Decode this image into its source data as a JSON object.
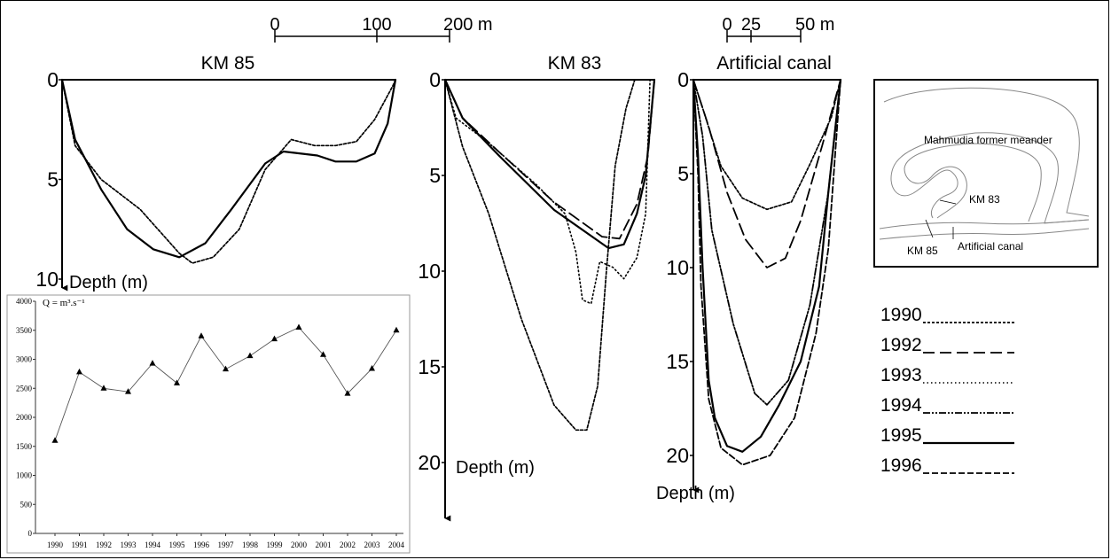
{
  "colors": {
    "ink": "#000000",
    "paper": "#ffffff",
    "river_outline": "#888888"
  },
  "scale_bars": [
    {
      "ticks": [
        "0",
        "100",
        "200 m"
      ]
    },
    {
      "ticks": [
        "0",
        "25",
        "50 m"
      ]
    }
  ],
  "legend": [
    {
      "year": "1990",
      "style": "dotted"
    },
    {
      "year": "1992",
      "style": "long-dash"
    },
    {
      "year": "1993",
      "style": "fine-dotted"
    },
    {
      "year": "1994",
      "style": "dash-dot-dot"
    },
    {
      "year": "1995",
      "style": "solid"
    },
    {
      "year": "1996",
      "style": "dashed"
    }
  ],
  "inset_map": {
    "labels": {
      "meander": "Mahmudia former meander",
      "km83": "KM 83",
      "km85": "KM 85",
      "canal": "Artificial canal"
    }
  },
  "chart_data": [
    {
      "type": "line",
      "title": "KM 85",
      "ylabel": "Depth (m)",
      "yticks": [
        "0",
        "5",
        "10"
      ],
      "ylim": [
        0,
        10
      ],
      "x_unit": "m",
      "xlim": [
        0,
        200
      ],
      "series": [
        {
          "year": "1995",
          "style": "solid",
          "points": [
            [
              0,
              0
            ],
            [
              5,
              3
            ],
            [
              15,
              5.5
            ],
            [
              25,
              7.5
            ],
            [
              35,
              8.5
            ],
            [
              45,
              8.9
            ],
            [
              55,
              8.2
            ],
            [
              65,
              6.5
            ],
            [
              78,
              4.2
            ],
            [
              85,
              3.6
            ],
            [
              98,
              3.8
            ],
            [
              105,
              4.1
            ],
            [
              113,
              4.1
            ],
            [
              120,
              3.7
            ],
            [
              125,
              2.2
            ],
            [
              128,
              0
            ]
          ]
        },
        {
          "year": "1990",
          "style": "dotted",
          "points": [
            [
              0,
              0
            ],
            [
              5,
              3.3
            ],
            [
              15,
              5
            ],
            [
              30,
              6.5
            ],
            [
              45,
              8.7
            ],
            [
              50,
              9.2
            ],
            [
              58,
              8.9
            ],
            [
              68,
              7.5
            ],
            [
              78,
              4.5
            ],
            [
              88,
              3
            ],
            [
              97,
              3.3
            ],
            [
              105,
              3.3
            ],
            [
              113,
              3.1
            ],
            [
              120,
              2
            ],
            [
              127,
              0.3
            ],
            [
              128,
              0
            ]
          ]
        }
      ]
    },
    {
      "type": "line",
      "title": "KM 83",
      "ylabel": "Depth (m)",
      "yticks": [
        "0",
        "5",
        "10",
        "15",
        "20"
      ],
      "ylim": [
        0,
        20
      ],
      "x_unit": "m",
      "xlim": [
        0,
        200
      ],
      "series": [
        {
          "year": "1995",
          "style": "solid",
          "points": [
            [
              0,
              0
            ],
            [
              8,
              2
            ],
            [
              25,
              4
            ],
            [
              50,
              6.8
            ],
            [
              75,
              8.8
            ],
            [
              82,
              8.6
            ],
            [
              88,
              7
            ],
            [
              92,
              5
            ],
            [
              96,
              0
            ]
          ]
        },
        {
          "year": "1992",
          "style": "long-dash",
          "points": [
            [
              0,
              0
            ],
            [
              8,
              2
            ],
            [
              25,
              3.8
            ],
            [
              50,
              6.4
            ],
            [
              72,
              8.2
            ],
            [
              80,
              8.3
            ],
            [
              88,
              6.5
            ],
            [
              93,
              4
            ],
            [
              96,
              0
            ]
          ]
        },
        {
          "year": "1990",
          "style": "dotted",
          "points": [
            [
              0,
              0
            ],
            [
              8,
              3.5
            ],
            [
              20,
              7
            ],
            [
              35,
              12.5
            ],
            [
              50,
              17
            ],
            [
              60,
              18.3
            ],
            [
              65,
              18.3
            ],
            [
              70,
              16
            ],
            [
              74,
              10
            ],
            [
              78,
              4.5
            ],
            [
              83,
              1.5
            ],
            [
              87,
              0
            ]
          ]
        },
        {
          "year": "1993",
          "style": "fine-dotted",
          "points": [
            [
              0,
              0
            ],
            [
              5,
              2
            ],
            [
              20,
              3.3
            ],
            [
              42,
              5.5
            ],
            [
              55,
              7
            ],
            [
              60,
              9
            ],
            [
              63,
              11.5
            ],
            [
              67,
              11.7
            ],
            [
              71,
              9.5
            ],
            [
              77,
              9.8
            ],
            [
              82,
              10.4
            ],
            [
              88,
              9.3
            ],
            [
              92,
              7
            ],
            [
              94,
              0
            ]
          ]
        }
      ]
    },
    {
      "type": "line",
      "title": "Artificial canal",
      "ylabel": "Depth (m)",
      "yticks": [
        "0",
        "5",
        "10",
        "15",
        "20"
      ],
      "ylim": [
        0,
        20
      ],
      "x_unit": "m",
      "xlim": [
        0,
        50
      ],
      "series": [
        {
          "year": "1990",
          "style": "dotted",
          "points": [
            [
              0,
              0
            ],
            [
              3,
              1.5
            ],
            [
              9,
              4.6
            ],
            [
              16,
              6.3
            ],
            [
              24,
              6.9
            ],
            [
              32,
              6.5
            ],
            [
              38,
              4.5
            ],
            [
              45,
              2
            ],
            [
              48,
              0
            ]
          ]
        },
        {
          "year": "1992",
          "style": "long-dash",
          "points": [
            [
              0,
              0
            ],
            [
              5,
              2.5
            ],
            [
              11,
              6
            ],
            [
              17,
              8.5
            ],
            [
              24,
              10
            ],
            [
              30,
              9.5
            ],
            [
              35,
              7.5
            ],
            [
              42,
              3.5
            ],
            [
              48,
              0
            ]
          ]
        },
        {
          "year": "1994",
          "style": "dash-dot-dot",
          "points": [
            [
              0,
              0
            ],
            [
              3,
              3
            ],
            [
              6,
              8
            ],
            [
              13,
              13
            ],
            [
              20,
              16.7
            ],
            [
              24,
              17.3
            ],
            [
              31,
              16
            ],
            [
              38,
              12
            ],
            [
              44,
              6
            ],
            [
              48,
              0
            ]
          ]
        },
        {
          "year": "1995",
          "style": "solid",
          "points": [
            [
              0,
              0
            ],
            [
              1.5,
              4
            ],
            [
              3,
              10
            ],
            [
              5,
              16
            ],
            [
              7,
              18
            ],
            [
              11,
              19.5
            ],
            [
              16,
              19.8
            ],
            [
              22,
              19
            ],
            [
              28,
              17.3
            ],
            [
              35,
              15
            ],
            [
              41,
              11
            ],
            [
              44,
              6
            ],
            [
              48,
              0
            ]
          ]
        },
        {
          "year": "1996",
          "style": "dashed",
          "points": [
            [
              0,
              0
            ],
            [
              1.5,
              5
            ],
            [
              2.5,
              11
            ],
            [
              5,
              17
            ],
            [
              9,
              19.6
            ],
            [
              16,
              20.5
            ],
            [
              25,
              20
            ],
            [
              33,
              18
            ],
            [
              40,
              13.5
            ],
            [
              44,
              9
            ],
            [
              48,
              0
            ]
          ]
        }
      ]
    },
    {
      "type": "line",
      "ylabel": "Q = m³.s⁻¹",
      "ylim": [
        0,
        4000
      ],
      "yticks": [
        "0",
        "500",
        "1000",
        "1500",
        "2000",
        "2500",
        "3000",
        "3500",
        "4000"
      ],
      "categories": [
        "1990",
        "1991",
        "1992",
        "1993",
        "1994",
        "1995",
        "1996",
        "1997",
        "1998",
        "1999",
        "2000",
        "2001",
        "2002",
        "2003",
        "2004"
      ],
      "values": [
        1600,
        2780,
        2500,
        2440,
        2930,
        2590,
        3400,
        2830,
        3060,
        3350,
        3550,
        3080,
        2410,
        2840,
        3500
      ],
      "marker": "triangle"
    }
  ]
}
